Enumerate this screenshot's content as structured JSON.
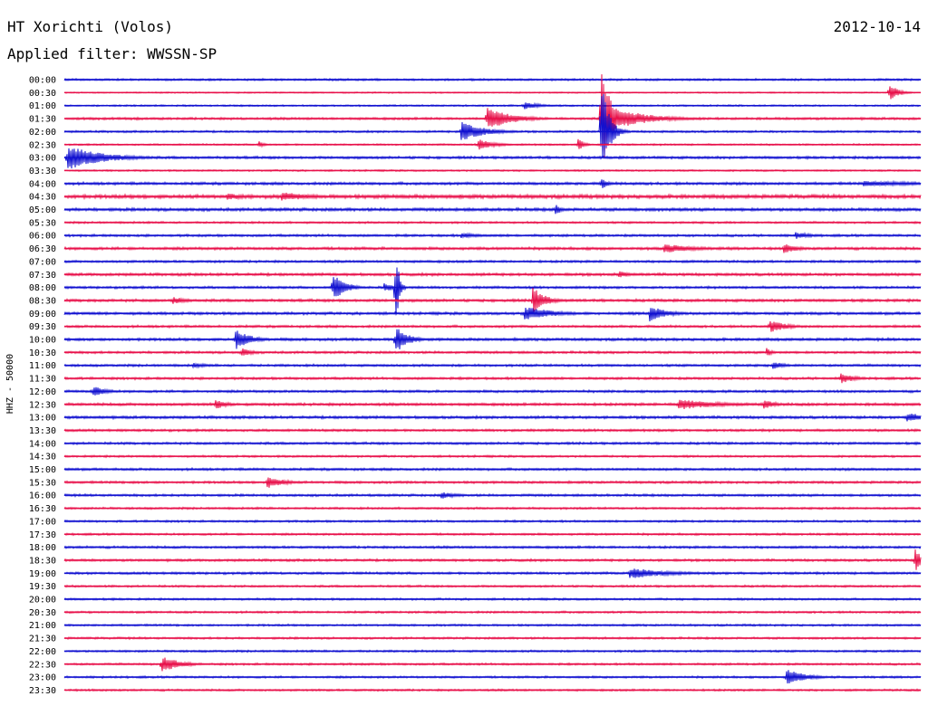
{
  "header": {
    "title": "HT Xorichti (Volos)",
    "date": "2012-10-14",
    "filter": "Applied filter: WWSSN-SP"
  },
  "channel_label": "HHZ - 50000",
  "colors": {
    "trace_a": "#1010d0",
    "trace_b": "#e8104a"
  },
  "chart_data": {
    "type": "line",
    "subtype": "helicorder",
    "title": "HT Xorichti (Volos)",
    "date": "2012-10-14",
    "filter": "WWSSN-SP",
    "channel": "HHZ - 50000",
    "row_interval_minutes": 30,
    "row_labels": [
      "00:00",
      "00:30",
      "01:00",
      "01:30",
      "02:00",
      "02:30",
      "03:00",
      "03:30",
      "04:00",
      "04:30",
      "05:00",
      "05:30",
      "06:00",
      "06:30",
      "07:00",
      "07:30",
      "08:00",
      "08:30",
      "09:00",
      "09:30",
      "10:00",
      "10:30",
      "11:00",
      "11:30",
      "12:00",
      "12:30",
      "13:00",
      "13:30",
      "14:00",
      "14:30",
      "15:00",
      "15:30",
      "16:00",
      "16:30",
      "17:00",
      "17:30",
      "18:00",
      "18:30",
      "19:00",
      "19:30",
      "20:00",
      "20:30",
      "21:00",
      "21:30",
      "22:00",
      "22:30",
      "23:00",
      "23:30"
    ],
    "row_colors": [
      "trace_a",
      "trace_b"
    ],
    "noise": [
      1.2,
      0.8,
      1.0,
      1.4,
      1.2,
      1.0,
      1.5,
      1.0,
      1.6,
      2.2,
      1.8,
      1.2,
      1.4,
      1.6,
      1.4,
      1.6,
      1.4,
      1.6,
      1.6,
      1.4,
      1.6,
      1.4,
      1.4,
      1.4,
      1.4,
      1.6,
      1.6,
      1.4,
      1.4,
      1.2,
      1.4,
      1.4,
      1.4,
      1.2,
      1.2,
      1.2,
      1.4,
      1.4,
      1.4,
      1.2,
      1.2,
      1.2,
      1.2,
      1.2,
      1.2,
      1.2,
      1.2,
      1.2
    ],
    "events": [
      {
        "row": 1,
        "minute": 28.9,
        "amp": 10,
        "dur": 0.3
      },
      {
        "row": 2,
        "minute": 16.1,
        "amp": 5,
        "dur": 0.5
      },
      {
        "row": 3,
        "minute": 14.8,
        "amp": 14,
        "dur": 0.8
      },
      {
        "row": 3,
        "minute": 18.8,
        "amp": 70,
        "dur": 0.3
      },
      {
        "row": 3,
        "minute": 18.9,
        "amp": 16,
        "dur": 1.2
      },
      {
        "row": 4,
        "minute": 13.9,
        "amp": 11,
        "dur": 0.8
      },
      {
        "row": 4,
        "minute": 18.8,
        "amp": 60,
        "dur": 0.25
      },
      {
        "row": 5,
        "minute": 6.8,
        "amp": 4,
        "dur": 0.2
      },
      {
        "row": 5,
        "minute": 14.5,
        "amp": 6,
        "dur": 0.6
      },
      {
        "row": 5,
        "minute": 18.0,
        "amp": 7,
        "dur": 0.2
      },
      {
        "row": 6,
        "minute": 0.1,
        "amp": 14,
        "dur": 1.2
      },
      {
        "row": 8,
        "minute": 18.8,
        "amp": 8,
        "dur": 0.2
      },
      {
        "row": 8,
        "minute": 28.0,
        "amp": 3,
        "dur": 3.0
      },
      {
        "row": 9,
        "minute": 5.7,
        "amp": 4,
        "dur": 0.8
      },
      {
        "row": 9,
        "minute": 7.6,
        "amp": 5,
        "dur": 1.2
      },
      {
        "row": 10,
        "minute": 17.2,
        "amp": 7,
        "dur": 0.2
      },
      {
        "row": 12,
        "minute": 13.9,
        "amp": 3,
        "dur": 0.8
      },
      {
        "row": 12,
        "minute": 25.6,
        "amp": 4,
        "dur": 0.6
      },
      {
        "row": 13,
        "minute": 21.0,
        "amp": 5,
        "dur": 1.2
      },
      {
        "row": 13,
        "minute": 25.2,
        "amp": 6,
        "dur": 0.5
      },
      {
        "row": 15,
        "minute": 19.4,
        "amp": 4,
        "dur": 0.5
      },
      {
        "row": 16,
        "minute": 9.4,
        "amp": 17,
        "dur": 0.4
      },
      {
        "row": 16,
        "minute": 11.2,
        "amp": 5,
        "dur": 0.5
      },
      {
        "row": 16,
        "minute": 11.6,
        "amp": 58,
        "dur": 0.1
      },
      {
        "row": 17,
        "minute": 3.8,
        "amp": 4,
        "dur": 0.6
      },
      {
        "row": 17,
        "minute": 16.4,
        "amp": 16,
        "dur": 0.4
      },
      {
        "row": 18,
        "minute": 16.1,
        "amp": 8,
        "dur": 1.0
      },
      {
        "row": 18,
        "minute": 20.5,
        "amp": 9,
        "dur": 0.6
      },
      {
        "row": 19,
        "minute": 24.7,
        "amp": 7,
        "dur": 0.6
      },
      {
        "row": 20,
        "minute": 6.0,
        "amp": 12,
        "dur": 0.5
      },
      {
        "row": 20,
        "minute": 11.6,
        "amp": 16,
        "dur": 0.4
      },
      {
        "row": 21,
        "minute": 6.2,
        "amp": 5,
        "dur": 0.4
      },
      {
        "row": 21,
        "minute": 24.6,
        "amp": 5,
        "dur": 0.2
      },
      {
        "row": 22,
        "minute": 4.5,
        "amp": 3,
        "dur": 0.6
      },
      {
        "row": 22,
        "minute": 24.8,
        "amp": 5,
        "dur": 0.4
      },
      {
        "row": 23,
        "minute": 27.2,
        "amp": 6,
        "dur": 0.5
      },
      {
        "row": 24,
        "minute": 1.0,
        "amp": 6,
        "dur": 0.5
      },
      {
        "row": 25,
        "minute": 5.3,
        "amp": 6,
        "dur": 0.4
      },
      {
        "row": 25,
        "minute": 21.5,
        "amp": 6,
        "dur": 1.5
      },
      {
        "row": 25,
        "minute": 24.5,
        "amp": 6,
        "dur": 0.4
      },
      {
        "row": 26,
        "minute": 29.5,
        "amp": 5,
        "dur": 1.0
      },
      {
        "row": 31,
        "minute": 7.1,
        "amp": 7,
        "dur": 0.6
      },
      {
        "row": 32,
        "minute": 13.2,
        "amp": 4,
        "dur": 0.6
      },
      {
        "row": 37,
        "minute": 29.8,
        "amp": 14,
        "dur": 0.2
      },
      {
        "row": 38,
        "minute": 19.8,
        "amp": 6,
        "dur": 1.4
      },
      {
        "row": 45,
        "minute": 3.4,
        "amp": 10,
        "dur": 0.6
      },
      {
        "row": 46,
        "minute": 25.3,
        "amp": 10,
        "dur": 0.6
      }
    ]
  }
}
